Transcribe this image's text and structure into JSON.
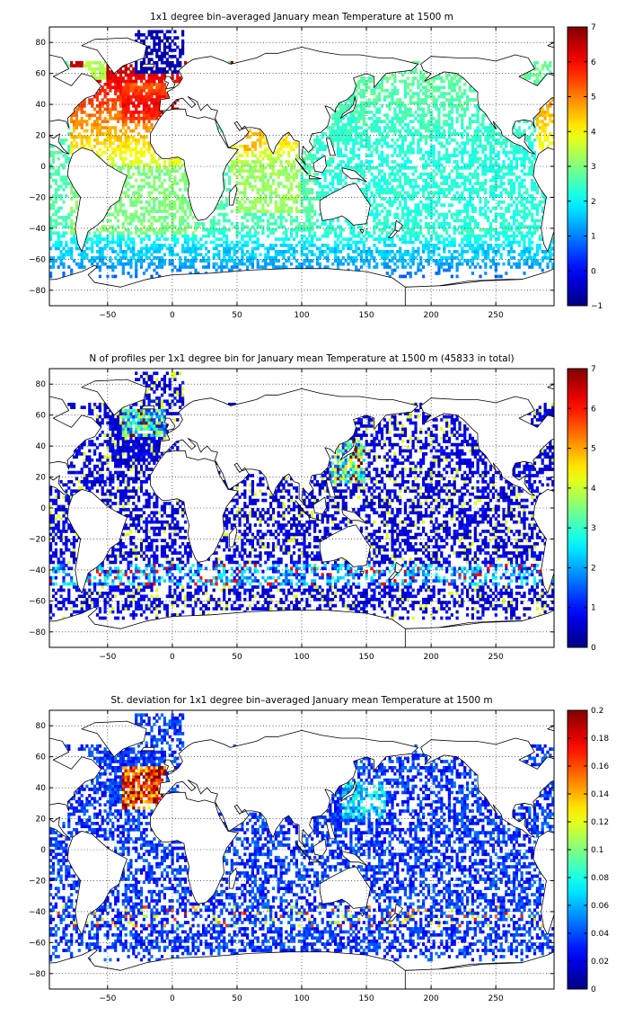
{
  "chart_data": [
    {
      "type": "heatmap",
      "title": "1x1 degree bin–averaged January mean Temperature at 1500 m",
      "xlabel": "",
      "ylabel": "",
      "xlim": [
        -95,
        295
      ],
      "ylim": [
        -90,
        90
      ],
      "x_ticks": [
        -50,
        0,
        50,
        100,
        150,
        200,
        250
      ],
      "x_tick_labels": [
        "−50",
        "0",
        "50",
        "100",
        "150",
        "200",
        "250"
      ],
      "y_ticks": [
        80,
        60,
        40,
        20,
        0,
        -20,
        -40,
        -60,
        -80
      ],
      "y_tick_labels": [
        "80",
        "60",
        "40",
        "20",
        "0",
        "−20",
        "−40",
        "−60",
        "−80"
      ],
      "grid": true,
      "colorbar": {
        "min": -1,
        "max": 7,
        "ticks": [
          7,
          6,
          5,
          4,
          3,
          2,
          1,
          0,
          -1
        ],
        "tick_labels": [
          "7",
          "6",
          "5",
          "4",
          "3",
          "2",
          "1",
          "0",
          "−1"
        ],
        "colormap": "jet"
      },
      "field": "temperature"
    },
    {
      "type": "heatmap",
      "title": "N of profiles per 1x1 degree bin for January mean Temperature at 1500 m (45833 in total)",
      "xlabel": "",
      "ylabel": "",
      "xlim": [
        -95,
        295
      ],
      "ylim": [
        -90,
        90
      ],
      "x_ticks": [
        -50,
        0,
        50,
        100,
        150,
        200,
        250
      ],
      "x_tick_labels": [
        "−50",
        "0",
        "50",
        "100",
        "150",
        "200",
        "250"
      ],
      "y_ticks": [
        80,
        60,
        40,
        20,
        0,
        -20,
        -40,
        -60,
        -80
      ],
      "y_tick_labels": [
        "80",
        "60",
        "40",
        "20",
        "0",
        "−20",
        "−40",
        "−60",
        "−80"
      ],
      "grid": true,
      "colorbar": {
        "min": 0,
        "max": 7,
        "ticks": [
          7,
          6,
          5,
          4,
          3,
          2,
          1,
          0
        ],
        "tick_labels": [
          "7",
          "6",
          "5",
          "4",
          "3",
          "2",
          "1",
          "0"
        ],
        "colormap": "jet"
      },
      "field": "count"
    },
    {
      "type": "heatmap",
      "title": "St. deviation for 1x1 degree bin–averaged January mean Temperature at 1500 m",
      "xlabel": "",
      "ylabel": "",
      "xlim": [
        -95,
        295
      ],
      "ylim": [
        -90,
        90
      ],
      "x_ticks": [
        -50,
        0,
        50,
        100,
        150,
        200,
        250
      ],
      "x_tick_labels": [
        "−50",
        "0",
        "50",
        "100",
        "150",
        "200",
        "250"
      ],
      "y_ticks": [
        80,
        60,
        40,
        20,
        0,
        -20,
        -40,
        -60,
        -80
      ],
      "y_tick_labels": [
        "80",
        "60",
        "40",
        "20",
        "0",
        "−20",
        "−40",
        "−60",
        "−80"
      ],
      "grid": true,
      "colorbar": {
        "min": 0,
        "max": 0.2,
        "ticks": [
          0.2,
          0.18,
          0.16,
          0.14,
          0.12,
          0.1,
          0.08,
          0.06,
          0.04,
          0.02,
          0
        ],
        "tick_labels": [
          "0.2",
          "0.18",
          "0.16",
          "0.14",
          "0.12",
          "0.1",
          "0.08",
          "0.06",
          "0.04",
          "0.02",
          "0"
        ],
        "colormap": "jet"
      },
      "field": "stdev"
    }
  ]
}
